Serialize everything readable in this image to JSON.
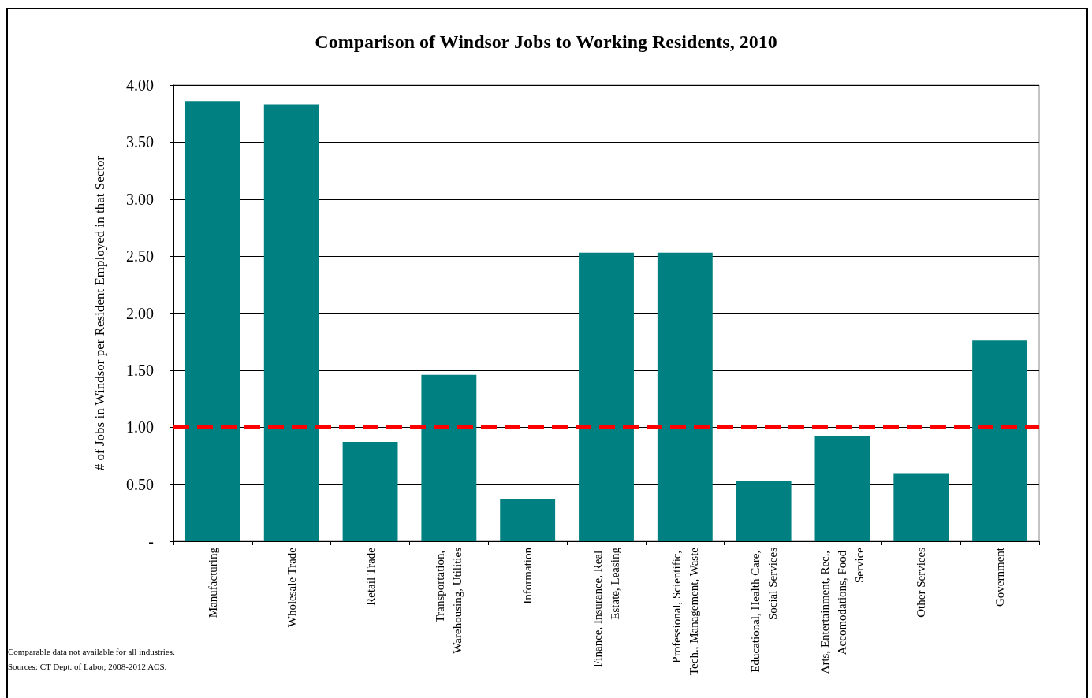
{
  "chart_data": {
    "type": "bar",
    "title": "Comparison of Windsor Jobs to Working Residents, 2010",
    "ylabel": "# of Jobs in Windsor per Resident Employed in that Sector",
    "categories": [
      "Manufacturing",
      "Wholesale Trade",
      "Retail Trade",
      "Transportation, Warehousing, Utilities",
      "Information",
      "Finance, Insurance, Real Estate, Leasing",
      "Professional, Scientific, Tech., Management, Waste",
      "Educational, Health Care, Social Services",
      "Arts, Entertainment, Rec., Accomodations, Food Service",
      "Other Services",
      "Government"
    ],
    "values": [
      3.86,
      3.83,
      0.87,
      1.46,
      0.37,
      2.53,
      2.53,
      0.53,
      0.92,
      0.59,
      1.76
    ],
    "color": "#008080",
    "ylim": [
      0,
      4
    ],
    "yticks": [
      {
        "value": 0,
        "label": "-"
      },
      {
        "value": 0.5,
        "label": "0.50"
      },
      {
        "value": 1,
        "label": "1.00"
      },
      {
        "value": 1.5,
        "label": "1.50"
      },
      {
        "value": 2,
        "label": "2.00"
      },
      {
        "value": 2.5,
        "label": "2.50"
      },
      {
        "value": 3,
        "label": "3.00"
      },
      {
        "value": 3.5,
        "label": "3.50"
      },
      {
        "value": 4,
        "label": "4.00"
      }
    ],
    "grid": "y",
    "ref_lines": [
      {
        "axis": "y",
        "value": 1,
        "color": "#ff0000",
        "line_style": "dashed"
      }
    ],
    "annotations": [
      "Comparable data not available for all industries.",
      "Sources: CT Dept. of Labor, 2008-2012 ACS."
    ]
  }
}
